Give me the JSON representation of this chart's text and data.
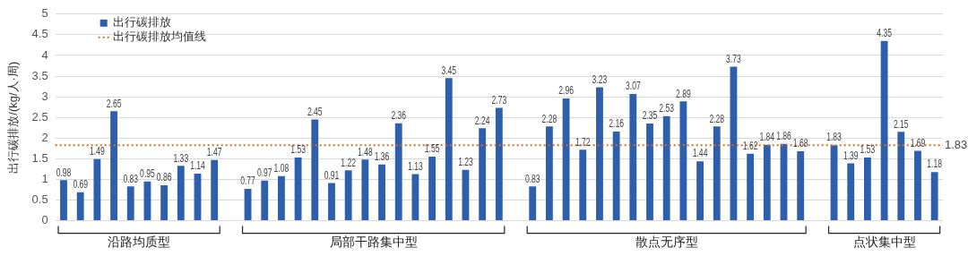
{
  "chart_data": {
    "type": "bar",
    "ylabel": "出行碳排放/(kg/人·周)",
    "categories": [
      null,
      null,
      null,
      null,
      null,
      null,
      null,
      null,
      null,
      null,
      null,
      null,
      null,
      null,
      null,
      null,
      null,
      null,
      null,
      null,
      null,
      null,
      null,
      null,
      null,
      null,
      null,
      null,
      null,
      null,
      null,
      null,
      null,
      null,
      null,
      null,
      null,
      null,
      null,
      null,
      null,
      null,
      null,
      null,
      null,
      null,
      null,
      null,
      null,
      null,
      null,
      null,
      null
    ],
    "series": [
      {
        "name": "出行碳排放",
        "color": "#2e5fad",
        "values": [
          0.98,
          0.69,
          1.49,
          2.65,
          0.83,
          0.95,
          0.86,
          1.33,
          1.14,
          1.47,
          null,
          0.77,
          0.97,
          1.08,
          1.53,
          2.45,
          0.91,
          1.22,
          1.48,
          1.36,
          2.36,
          1.13,
          1.55,
          3.45,
          1.23,
          2.24,
          2.73,
          null,
          0.83,
          2.28,
          2.96,
          1.72,
          3.23,
          2.16,
          3.07,
          2.35,
          2.53,
          2.89,
          1.44,
          2.28,
          3.73,
          1.62,
          1.84,
          1.86,
          1.68,
          null,
          1.83,
          1.39,
          1.53,
          4.35,
          2.15,
          1.69,
          1.18
        ]
      }
    ],
    "ref_lines": [
      {
        "axis": "y",
        "value": 1.83,
        "label": "出行碳排放均值线",
        "color": "#e06c1c",
        "line_style": "dotted"
      }
    ],
    "annotations": [
      "沿路均质型",
      "局部干路集中型",
      "散点无序型",
      "点状集中型",
      "1.83"
    ],
    "ylim": [
      0,
      5
    ],
    "yticks": [
      0,
      0.5,
      1,
      1.5,
      2,
      2.5,
      3,
      3.5,
      4,
      4.5,
      5
    ],
    "grid": "y",
    "legend": "top left",
    "data_labels": true
  }
}
